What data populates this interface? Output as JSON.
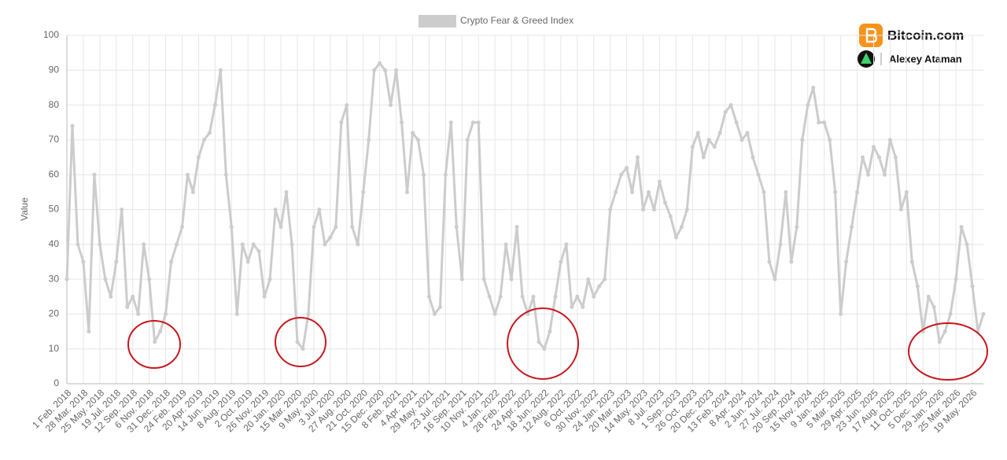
{
  "brand": "Bitcoin.com",
  "author": "Alexey Ataman",
  "chart_data": {
    "type": "line",
    "y_label": "Value",
    "ylim": [
      0,
      100
    ],
    "yticks": [
      0,
      10,
      20,
      30,
      40,
      50,
      60,
      70,
      80,
      90,
      100
    ],
    "grid": true,
    "categories": [
      "1 Feb. 2018",
      null,
      null,
      "28 Mar. 2018",
      null,
      null,
      "25 May. 2018",
      null,
      null,
      "19 Jul. 2018",
      null,
      null,
      "12 Sep. 2018",
      null,
      null,
      "6 Nov. 2018",
      null,
      null,
      "31 Dec. 2018",
      null,
      null,
      "24 Feb. 2019",
      null,
      null,
      "20 Apr. 2019",
      null,
      null,
      "14 Jun. 2019",
      null,
      null,
      "8 Aug. 2019",
      null,
      null,
      "2 Oct. 2019",
      null,
      null,
      "26 Nov. 2019",
      null,
      null,
      "20 Jan. 2020",
      null,
      null,
      "15 Mar. 2020",
      null,
      null,
      "9 May. 2020",
      null,
      null,
      "3 Jul. 2020",
      null,
      null,
      "27 Aug. 2020",
      null,
      null,
      "21 Oct. 2020",
      null,
      null,
      "15 Dec. 2020",
      null,
      null,
      "8 Feb. 2021",
      null,
      null,
      "4 Apr. 2021",
      null,
      null,
      "29 May. 2021",
      null,
      null,
      "23 Jul. 2021",
      null,
      null,
      "16 Sep. 2021",
      null,
      null,
      "10 Nov. 2021",
      null,
      null,
      "4 Jan. 2022",
      null,
      null,
      "28 Feb. 2022",
      null,
      null,
      "24 Apr. 2022",
      null,
      null,
      "18 Jun. 2022",
      null,
      null,
      "12 Aug. 2022",
      null,
      null,
      "6 Oct. 2022",
      null,
      null,
      "30 Nov. 2022",
      null,
      null,
      "24 Jan. 2023",
      null,
      null,
      "20 Mar. 2023",
      null,
      null,
      "14 May. 2023",
      null,
      null,
      "8 Jul. 2023",
      null,
      null,
      "1 Sep. 2023",
      null,
      null,
      "26 Oct. 2023",
      null,
      null,
      "20 Dec. 2023",
      null,
      null,
      "13 Feb. 2024",
      null,
      null,
      "8 Apr. 2024",
      null,
      null,
      "2 Jun. 2024",
      null,
      null,
      "27 Jul. 2024",
      null,
      null,
      "20 Sep. 2024",
      null,
      null,
      "15 Nov. 2024",
      null,
      null,
      "9 Jan. 2025",
      null,
      null,
      "5 Mar. 2025",
      null,
      null,
      "29 Apr. 2025",
      null,
      null,
      "23 Jun. 2025",
      null,
      null,
      "17 Aug. 2025",
      null,
      null,
      "11 Oct. 2025",
      null,
      null,
      "5 Dec. 2025",
      null,
      null,
      "29 Jan. 2026",
      null,
      null,
      "25 Mar. 2026",
      null,
      null,
      "19 May. 2026",
      null,
      null
    ],
    "series": [
      {
        "name": "Crypto Fear & Greed Index",
        "color": "#cccccc",
        "values": [
          30,
          74,
          40,
          35,
          15,
          60,
          40,
          30,
          25,
          35,
          50,
          22,
          25,
          20,
          40,
          30,
          12,
          15,
          20,
          35,
          40,
          45,
          60,
          55,
          65,
          70,
          72,
          80,
          90,
          60,
          45,
          20,
          40,
          35,
          40,
          38,
          25,
          30,
          50,
          45,
          55,
          40,
          12,
          10,
          20,
          45,
          50,
          40,
          42,
          45,
          75,
          80,
          45,
          40,
          55,
          70,
          90,
          92,
          90,
          80,
          90,
          75,
          55,
          72,
          70,
          60,
          25,
          20,
          22,
          60,
          75,
          45,
          30,
          70,
          75,
          75,
          30,
          25,
          20,
          25,
          40,
          30,
          45,
          25,
          20,
          25,
          12,
          10,
          15,
          25,
          35,
          40,
          22,
          25,
          22,
          30,
          25,
          28,
          30,
          50,
          55,
          60,
          62,
          55,
          65,
          50,
          55,
          50,
          58,
          52,
          48,
          42,
          45,
          50,
          68,
          72,
          65,
          70,
          68,
          72,
          78,
          80,
          75,
          70,
          72,
          65,
          60,
          55,
          35,
          30,
          40,
          55,
          35,
          45,
          70,
          80,
          85,
          75,
          75,
          70,
          55,
          20,
          35,
          45,
          55,
          65,
          60,
          68,
          65,
          60,
          70,
          65,
          50,
          55,
          35,
          28,
          15,
          25,
          22,
          12,
          15,
          20,
          30,
          45,
          40,
          28,
          15,
          20
        ]
      }
    ]
  }
}
